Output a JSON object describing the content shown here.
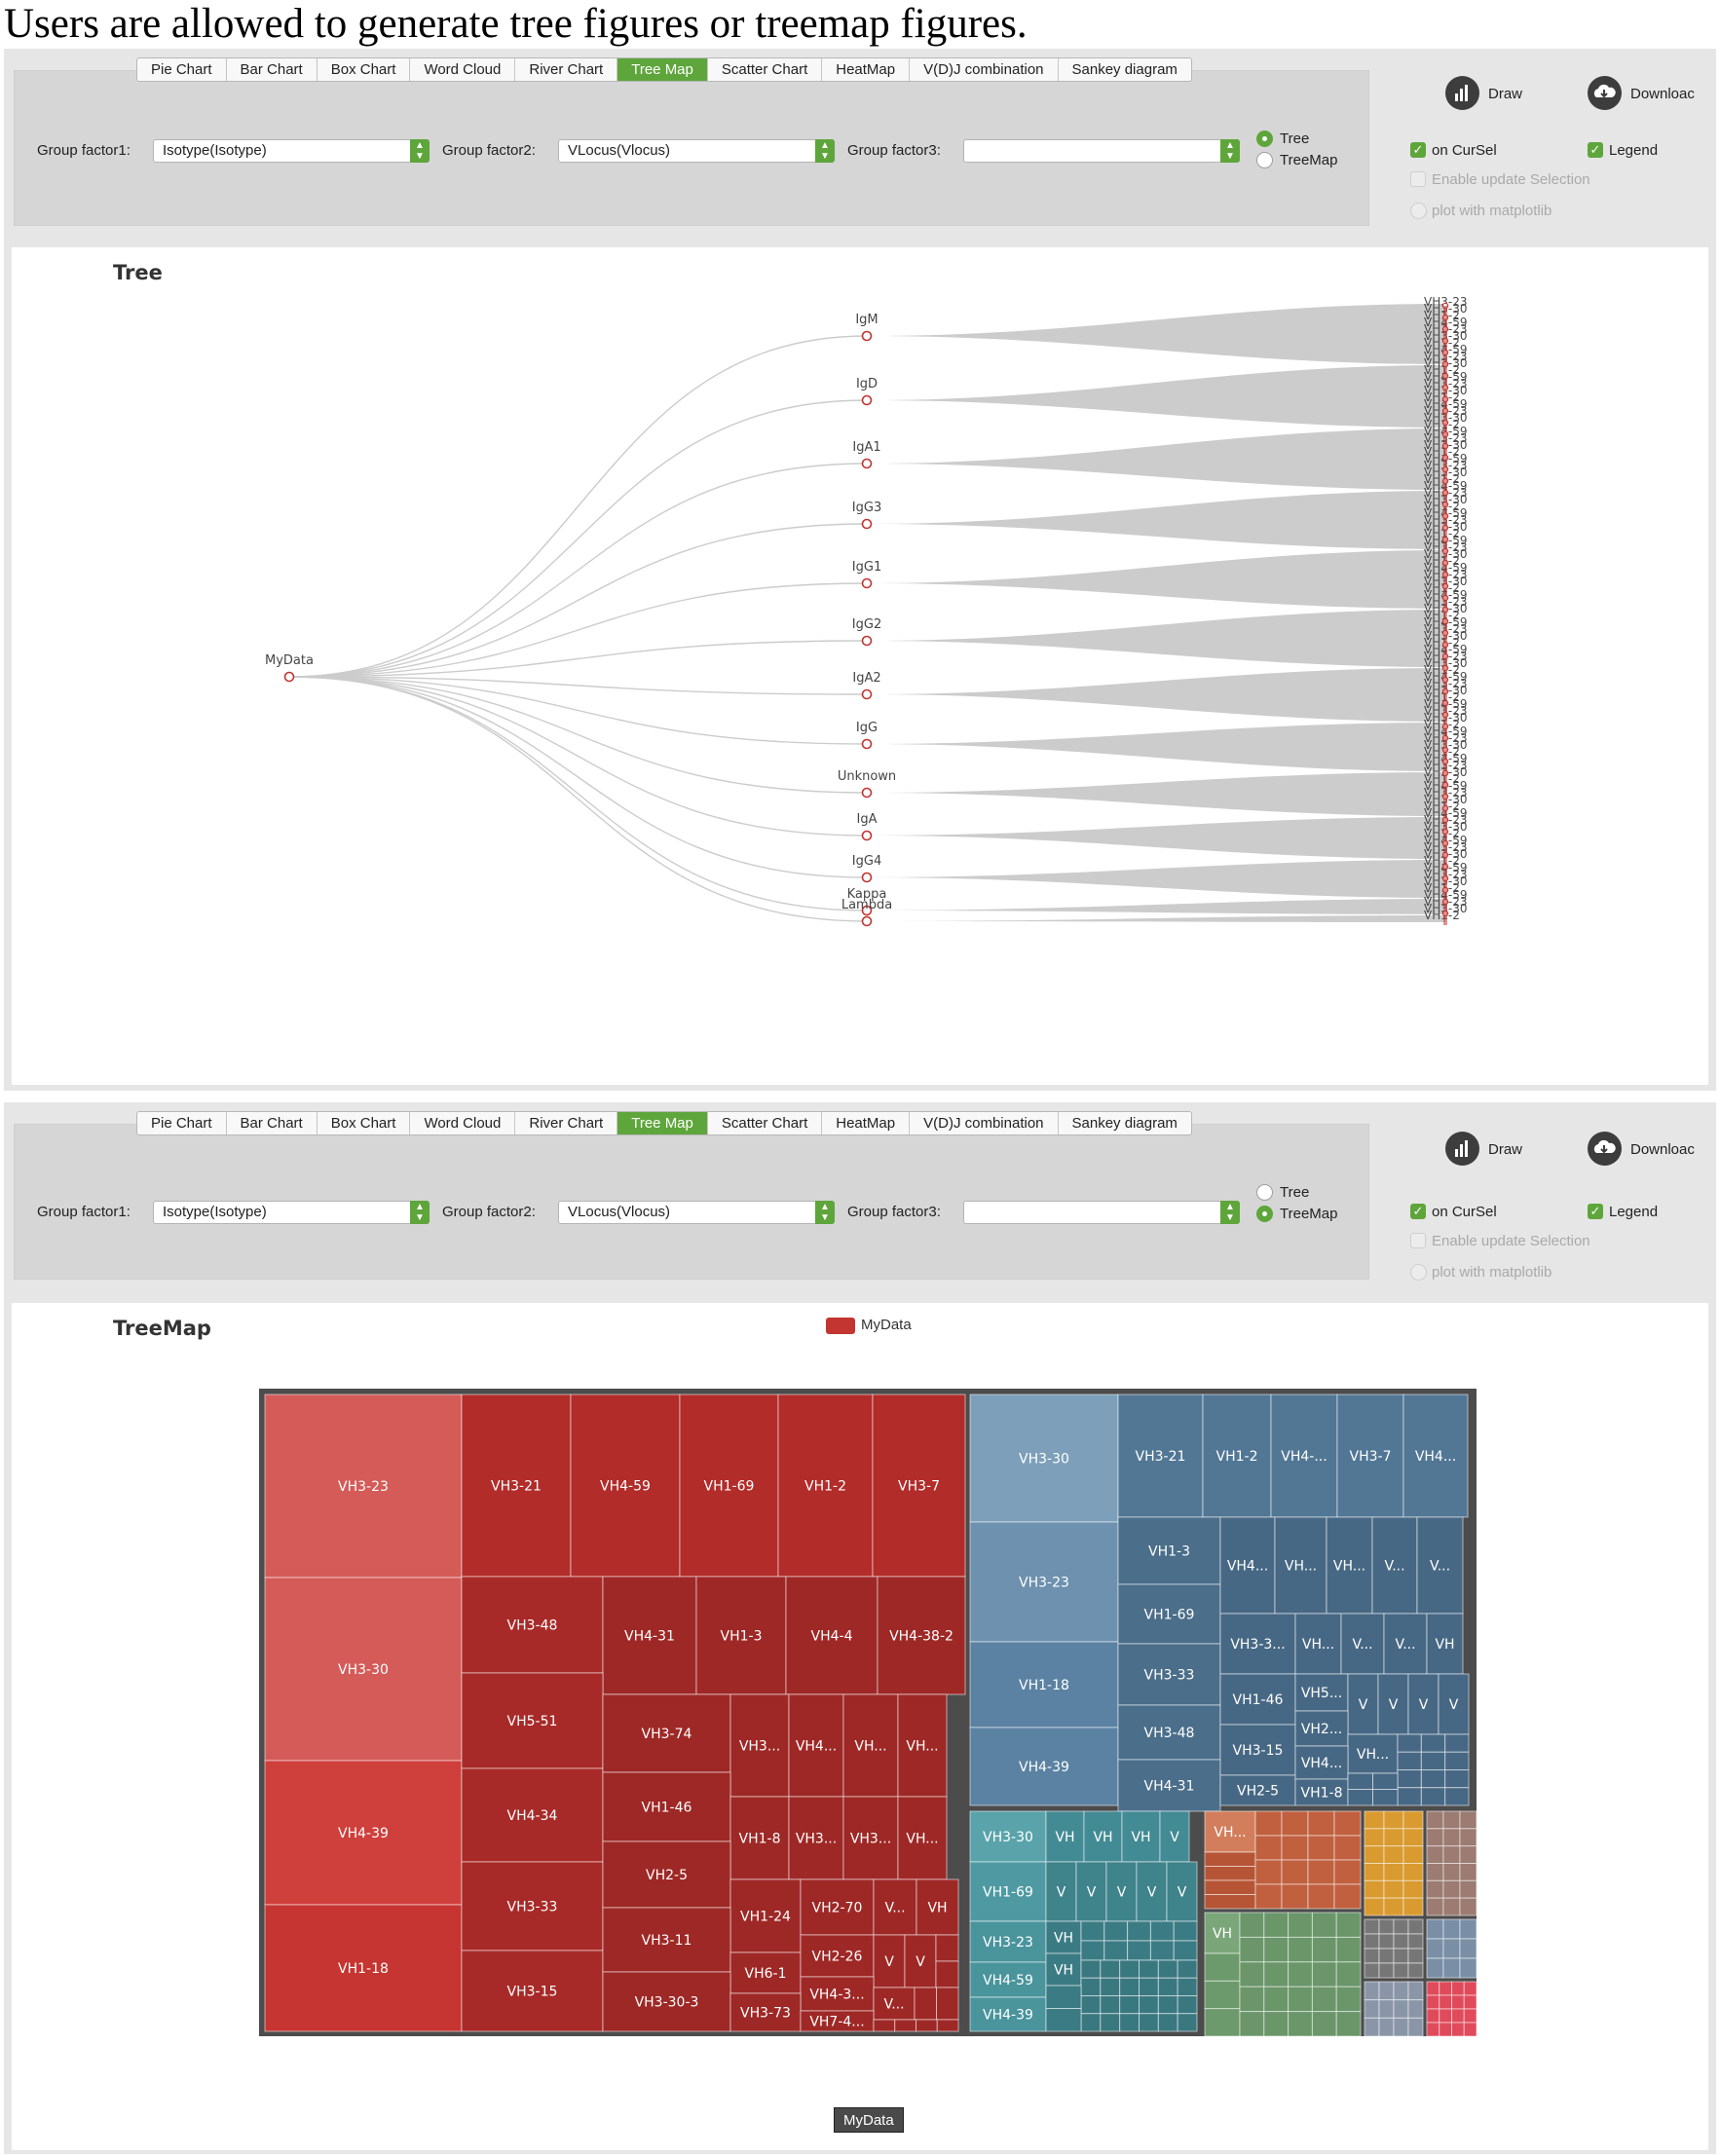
{
  "caption": "Users are allowed to generate tree figures or treemap figures.",
  "tabs": [
    "Pie Chart",
    "Bar Chart",
    "Box Chart",
    "Word Cloud",
    "River Chart",
    "Tree Map",
    "Scatter Chart",
    "HeatMap",
    "V(D)J combination",
    "Sankey diagram"
  ],
  "active_tab": "Tree Map",
  "controls": {
    "group_factor1_label": "Group factor1:",
    "group_factor1_value": "Isotype(Isotype)",
    "group_factor2_label": "Group factor2:",
    "group_factor2_value": "VLocus(Vlocus)",
    "group_factor3_label": "Group factor3:",
    "group_factor3_value": "",
    "radio_tree": "Tree",
    "radio_treemap": "TreeMap",
    "draw_label": "Draw",
    "download_label": "Downloac",
    "on_cursel": "on CurSel",
    "legend": "Legend",
    "enable_update": "Enable update Selection",
    "plot_matplotlib": "plot with matplotlib"
  },
  "panels": [
    {
      "selected_view": "Tree",
      "on_cursel_checked": true,
      "legend_checked": true
    },
    {
      "selected_view": "TreeMap",
      "on_cursel_checked": true,
      "legend_checked": true
    }
  ],
  "colors": {
    "accent": "#5ea63b",
    "tree_link": "#cccccc",
    "tree_node": "#c23531",
    "treemap_red": "#b52f2d",
    "treemap_blue": "#4e7392",
    "treemap_teal": "#3d8790",
    "treemap_orange": "#c4603c",
    "treemap_gold": "#d99a2f",
    "treemap_green": "#6c9a6c"
  },
  "tree": {
    "title": "Tree",
    "root": "MyData",
    "isotypes": [
      "IgM",
      "IgD",
      "IgA1",
      "IgG3",
      "IgG1",
      "IgG2",
      "IgA2",
      "IgG",
      "Unknown",
      "IgA",
      "IgG4",
      "Kappa",
      "Lambda"
    ],
    "leaf_text_fragments": [
      "VH3-23",
      "VH3-30",
      "VH1-2",
      "VH4-59"
    ]
  },
  "treemap": {
    "title": "TreeMap",
    "legend_label": "MyData",
    "root_label": "MyData",
    "red_blocks": [
      {
        "label": "VH3-23",
        "shade": "#d45b58"
      },
      {
        "label": "VH3-30",
        "shade": "#d45b58"
      },
      {
        "label": "VH4-39",
        "shade": "#cf3f3c"
      },
      {
        "label": "VH1-18",
        "shade": "#c63532"
      },
      {
        "label": "VH3-21",
        "shade": "#b22c2a"
      },
      {
        "label": "VH4-59",
        "shade": "#b22c2a"
      },
      {
        "label": "VH1-69",
        "shade": "#b22c2a"
      },
      {
        "label": "VH1-2",
        "shade": "#b22c2a"
      },
      {
        "label": "VH3-7",
        "shade": "#b22c2a"
      },
      {
        "label": "VH3-48",
        "shade": "#a82a28"
      },
      {
        "label": "VH4-31",
        "shade": "#9e2826"
      },
      {
        "label": "VH1-3",
        "shade": "#9e2826"
      },
      {
        "label": "VH4-4",
        "shade": "#9e2826"
      },
      {
        "label": "VH4-38-2",
        "shade": "#9e2826"
      },
      {
        "label": "VH5-51",
        "shade": "#a82a28"
      },
      {
        "label": "VH4-34",
        "shade": "#a82a28"
      },
      {
        "label": "VH3-33",
        "shade": "#a82a28"
      },
      {
        "label": "VH3-15",
        "shade": "#a82a28"
      },
      {
        "label": "VH3-74",
        "shade": "#9e2826"
      },
      {
        "label": "VH3...",
        "shade": "#9e2826"
      },
      {
        "label": "VH4...",
        "shade": "#9e2826"
      },
      {
        "label": "VH...",
        "shade": "#9e2826"
      },
      {
        "label": "VH...",
        "shade": "#9e2826"
      },
      {
        "label": "VH1-46",
        "shade": "#9e2826"
      },
      {
        "label": "VH1-8",
        "shade": "#9e2826"
      },
      {
        "label": "VH3...",
        "shade": "#9e2826"
      },
      {
        "label": "VH3...",
        "shade": "#9e2826"
      },
      {
        "label": "VH...",
        "shade": "#9e2826"
      },
      {
        "label": "VH2-5",
        "shade": "#9e2826"
      },
      {
        "label": "VH1-24",
        "shade": "#9e2826"
      },
      {
        "label": "VH2-70",
        "shade": "#9e2826"
      },
      {
        "label": "V...",
        "shade": "#9e2826"
      },
      {
        "label": "VH",
        "shade": "#9e2826"
      },
      {
        "label": "VH3-11",
        "shade": "#9e2826"
      },
      {
        "label": "VH6-1",
        "shade": "#9e2826"
      },
      {
        "label": "VH2-26",
        "shade": "#9e2826"
      },
      {
        "label": "V",
        "shade": "#9e2826"
      },
      {
        "label": "V",
        "shade": "#9e2826"
      },
      {
        "label": "VH4-3...",
        "shade": "#9e2826"
      },
      {
        "label": "V...",
        "shade": "#9e2826"
      },
      {
        "label": "VH3-30-3",
        "shade": "#9e2826"
      },
      {
        "label": "VH3-73",
        "shade": "#9e2826"
      },
      {
        "label": "VH7-4...",
        "shade": "#9e2826"
      }
    ],
    "blue_blocks": [
      {
        "label": "VH3-30",
        "shade": "#7d9fba"
      },
      {
        "label": "VH3-23",
        "shade": "#6d91ae"
      },
      {
        "label": "VH1-18",
        "shade": "#5b82a2"
      },
      {
        "label": "VH4-39",
        "shade": "#5b82a2"
      },
      {
        "label": "VH3-21",
        "shade": "#527795"
      },
      {
        "label": "VH1-2",
        "shade": "#527795"
      },
      {
        "label": "VH4-...",
        "shade": "#527795"
      },
      {
        "label": "VH3-7",
        "shade": "#527795"
      },
      {
        "label": "VH4...",
        "shade": "#527795"
      },
      {
        "label": "VH1-3",
        "shade": "#4b6e8a"
      },
      {
        "label": "VH1-69",
        "shade": "#4b6e8a"
      },
      {
        "label": "VH3-33",
        "shade": "#4b6e8a"
      },
      {
        "label": "VH3-48",
        "shade": "#4b6e8a"
      },
      {
        "label": "VH4-31",
        "shade": "#4b6e8a"
      },
      {
        "label": "VH4...",
        "shade": "#476884"
      },
      {
        "label": "VH...",
        "shade": "#476884"
      },
      {
        "label": "VH...",
        "shade": "#476884"
      },
      {
        "label": "V...",
        "shade": "#476884"
      },
      {
        "label": "V...",
        "shade": "#476884"
      },
      {
        "label": "VH3-3...",
        "shade": "#476884"
      },
      {
        "label": "VH...",
        "shade": "#476884"
      },
      {
        "label": "V...",
        "shade": "#476884"
      },
      {
        "label": "V...",
        "shade": "#476884"
      },
      {
        "label": "VH",
        "shade": "#476884"
      },
      {
        "label": "VH1-46",
        "shade": "#476884"
      },
      {
        "label": "VH5...",
        "shade": "#476884"
      },
      {
        "label": "V",
        "shade": "#476884"
      },
      {
        "label": "V",
        "shade": "#476884"
      },
      {
        "label": "V",
        "shade": "#476884"
      },
      {
        "label": "V",
        "shade": "#476884"
      },
      {
        "label": "VH3-15",
        "shade": "#476884"
      },
      {
        "label": "VH2...",
        "shade": "#476884"
      },
      {
        "label": "VH...",
        "shade": "#476884"
      },
      {
        "label": "VH4...",
        "shade": "#476884"
      },
      {
        "label": "VH2-5",
        "shade": "#476884"
      },
      {
        "label": "VH1-8",
        "shade": "#476884"
      }
    ],
    "teal_blocks": [
      {
        "label": "VH3-30",
        "shade": "#5aa3ab"
      },
      {
        "label": "VH",
        "shade": "#438b94"
      },
      {
        "label": "VH",
        "shade": "#438b94"
      },
      {
        "label": "VH",
        "shade": "#438b94"
      },
      {
        "label": "V",
        "shade": "#438b94"
      },
      {
        "label": "VH1-69",
        "shade": "#4f9aa2"
      },
      {
        "label": "V",
        "shade": "#3f838b"
      },
      {
        "label": "V",
        "shade": "#3f838b"
      },
      {
        "label": "V",
        "shade": "#3f838b"
      },
      {
        "label": "V",
        "shade": "#3f838b"
      },
      {
        "label": "V",
        "shade": "#3f838b"
      },
      {
        "label": "VH3-23",
        "shade": "#4a949c"
      },
      {
        "label": "VH",
        "shade": "#3b7c84"
      },
      {
        "label": "VH4-59",
        "shade": "#4a949c"
      },
      {
        "label": "VH",
        "shade": "#3b7c84"
      },
      {
        "label": "VH4-39",
        "shade": "#4a949c"
      }
    ],
    "small_labels": [
      {
        "label": "VH...",
        "group": "orange"
      },
      {
        "label": "VH",
        "group": "green"
      }
    ]
  }
}
